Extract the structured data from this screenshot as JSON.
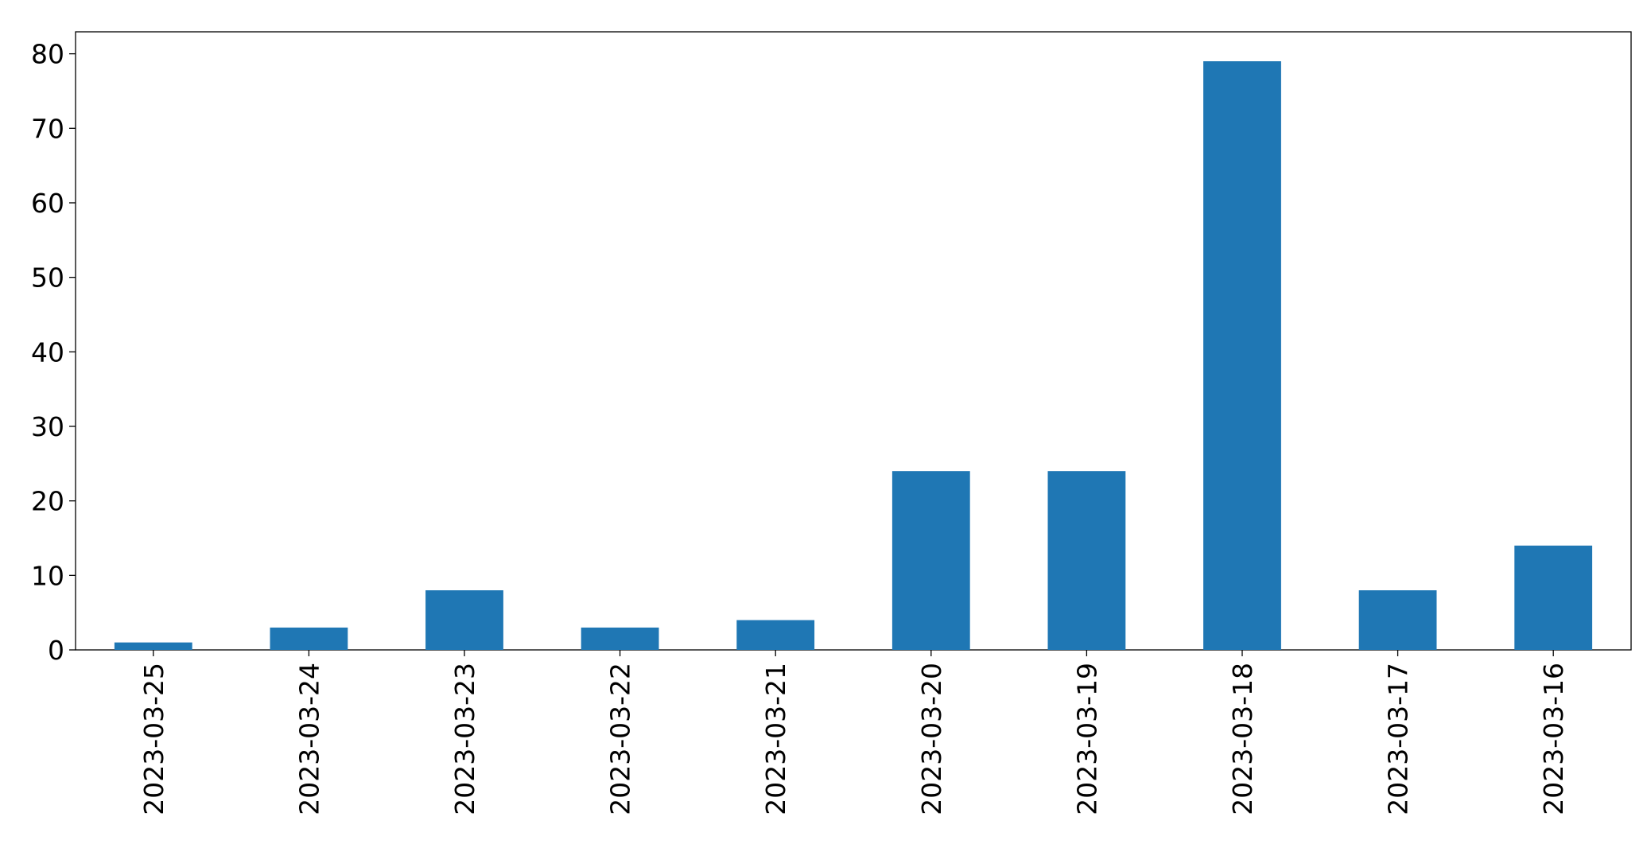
{
  "chart_data": {
    "type": "bar",
    "categories": [
      "2023-03-25",
      "2023-03-24",
      "2023-03-23",
      "2023-03-22",
      "2023-03-21",
      "2023-03-20",
      "2023-03-19",
      "2023-03-18",
      "2023-03-17",
      "2023-03-16"
    ],
    "values": [
      1,
      3,
      8,
      3,
      4,
      24,
      24,
      79,
      8,
      14
    ],
    "color": "#1f77b4",
    "ylim": [
      0,
      82.95
    ],
    "yticks": [
      0,
      10,
      20,
      30,
      40,
      50,
      60,
      70,
      80
    ],
    "grid": false
  }
}
